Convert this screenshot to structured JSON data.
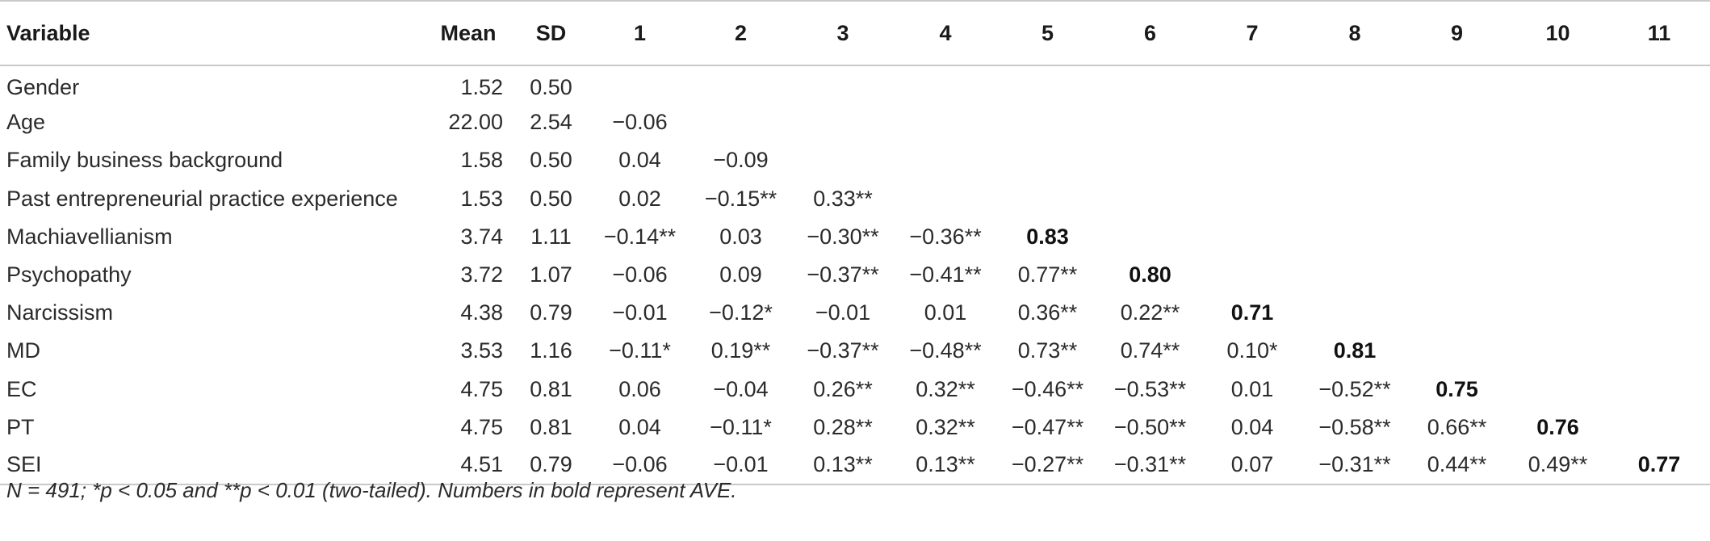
{
  "table": {
    "headers": [
      "Variable",
      "Mean",
      "SD",
      "1",
      "2",
      "3",
      "4",
      "5",
      "6",
      "7",
      "8",
      "9",
      "10",
      "11"
    ],
    "rows": [
      {
        "variable": "Gender",
        "mean": "1.52",
        "sd": "0.50",
        "corr": [
          "",
          "",
          "",
          "",
          "",
          "",
          "",
          "",
          "",
          "",
          ""
        ]
      },
      {
        "variable": "Age",
        "mean": "22.00",
        "sd": "2.54",
        "corr": [
          "−0.06",
          "",
          "",
          "",
          "",
          "",
          "",
          "",
          "",
          "",
          ""
        ]
      },
      {
        "variable": "Family business background",
        "mean": "1.58",
        "sd": "0.50",
        "corr": [
          "0.04",
          "−0.09",
          "",
          "",
          "",
          "",
          "",
          "",
          "",
          "",
          ""
        ]
      },
      {
        "variable": "Past entrepreneurial practice experience",
        "mean": "1.53",
        "sd": "0.50",
        "corr": [
          "0.02",
          "−0.15**",
          "0.33**",
          "",
          "",
          "",
          "",
          "",
          "",
          "",
          ""
        ]
      },
      {
        "variable": "Machiavellianism",
        "mean": "3.74",
        "sd": "1.11",
        "corr": [
          "−0.14**",
          "0.03",
          "−0.30**",
          "−0.36**",
          "0.83",
          "",
          "",
          "",
          "",
          "",
          ""
        ]
      },
      {
        "variable": "Psychopathy",
        "mean": "3.72",
        "sd": "1.07",
        "corr": [
          "−0.06",
          "0.09",
          "−0.37**",
          "−0.41**",
          "0.77**",
          "0.80",
          "",
          "",
          "",
          "",
          ""
        ]
      },
      {
        "variable": "Narcissism",
        "mean": "4.38",
        "sd": "0.79",
        "corr": [
          "−0.01",
          "−0.12*",
          "−0.01",
          "0.01",
          "0.36**",
          "0.22**",
          "0.71",
          "",
          "",
          "",
          ""
        ]
      },
      {
        "variable": "MD",
        "mean": "3.53",
        "sd": "1.16",
        "corr": [
          "−0.11*",
          "0.19**",
          "−0.37**",
          "−0.48**",
          "0.73**",
          "0.74**",
          "0.10*",
          "0.81",
          "",
          "",
          ""
        ]
      },
      {
        "variable": "EC",
        "mean": "4.75",
        "sd": "0.81",
        "corr": [
          "0.06",
          "−0.04",
          "0.26**",
          "0.32**",
          "−0.46**",
          "−0.53**",
          "0.01",
          "−0.52**",
          "0.75",
          "",
          ""
        ]
      },
      {
        "variable": "PT",
        "mean": "4.75",
        "sd": "0.81",
        "corr": [
          "0.04",
          "−0.11*",
          "0.28**",
          "0.32**",
          "−0.47**",
          "−0.50**",
          "0.04",
          "−0.58**",
          "0.66**",
          "0.76",
          ""
        ]
      },
      {
        "variable": "SEI",
        "mean": "4.51",
        "sd": "0.79",
        "corr": [
          "−0.06",
          "−0.01",
          "0.13**",
          "0.13**",
          "−0.27**",
          "−0.31**",
          "0.07",
          "−0.31**",
          "0.44**",
          "0.49**",
          "0.77"
        ]
      }
    ],
    "bold_cells": [
      [
        4,
        4
      ],
      [
        5,
        5
      ],
      [
        6,
        6
      ],
      [
        7,
        7
      ],
      [
        8,
        8
      ],
      [
        9,
        9
      ],
      [
        10,
        10
      ]
    ]
  },
  "note": "N = 491; *p < 0.05 and **p < 0.01 (two-tailed). Numbers in bold represent AVE."
}
